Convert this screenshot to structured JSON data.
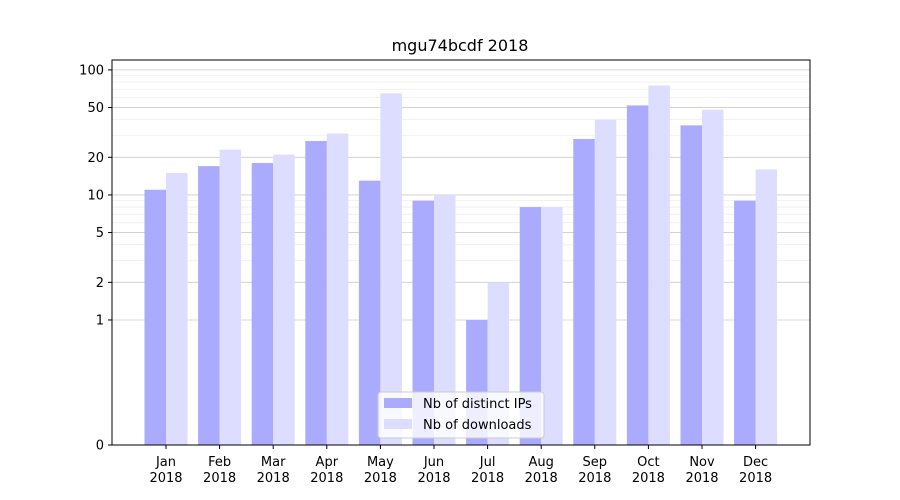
{
  "chart_data": {
    "type": "bar",
    "title": "mgu74bcdf 2018",
    "xlabel": "",
    "ylabel": "",
    "yscale": "symlog",
    "ylim": [
      0,
      120
    ],
    "yticks": [
      0,
      1,
      2,
      5,
      10,
      20,
      50,
      100
    ],
    "categories": [
      [
        "Jan",
        "2018"
      ],
      [
        "Feb",
        "2018"
      ],
      [
        "Mar",
        "2018"
      ],
      [
        "Apr",
        "2018"
      ],
      [
        "May",
        "2018"
      ],
      [
        "Jun",
        "2018"
      ],
      [
        "Jul",
        "2018"
      ],
      [
        "Aug",
        "2018"
      ],
      [
        "Sep",
        "2018"
      ],
      [
        "Oct",
        "2018"
      ],
      [
        "Nov",
        "2018"
      ],
      [
        "Dec",
        "2018"
      ]
    ],
    "series": [
      {
        "name": "Nb of distinct IPs",
        "color": "#aaaaff",
        "values": [
          11,
          17,
          18,
          27,
          13,
          9,
          1,
          8,
          28,
          52,
          36,
          9
        ]
      },
      {
        "name": "Nb of downloads",
        "color": "#ddddff",
        "values": [
          15,
          23,
          21,
          31,
          65,
          10,
          2,
          8,
          40,
          75,
          48,
          16
        ]
      }
    ],
    "grid": true,
    "legend": "bottom-center"
  }
}
